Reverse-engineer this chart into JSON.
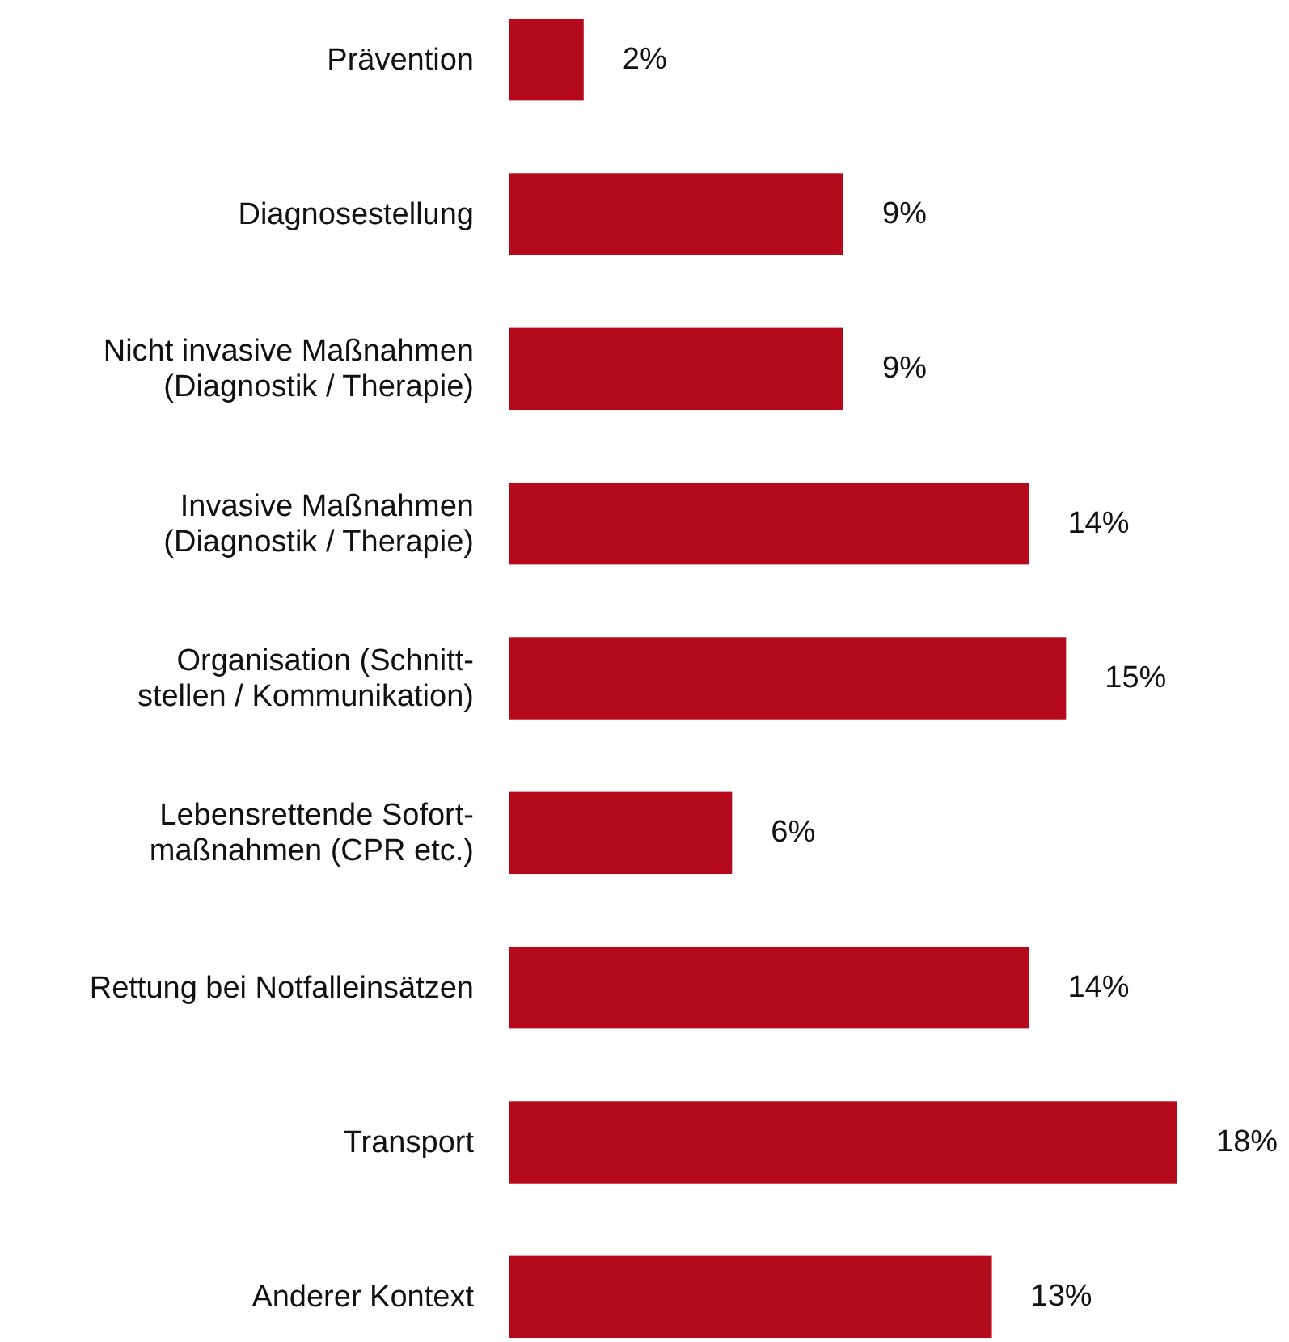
{
  "chart_data": {
    "type": "bar",
    "orientation": "horizontal",
    "categories": [
      "Prävention",
      "Diagnosestellung",
      "Nicht invasive Maßnahmen\n(Diagnostik / Therapie)",
      "Invasive Maßnahmen\n(Diagnostik / Therapie)",
      "Organisation (Schnitt-\nstellen / Kommunikation)",
      "Lebensrettende Sofort-\nmaßnahmen (CPR etc.)",
      "Rettung bei Notfalleinsätzen",
      "Transport",
      "Anderer Kontext"
    ],
    "values": [
      2,
      9,
      9,
      14,
      15,
      6,
      14,
      18,
      13
    ],
    "value_labels": [
      "2%",
      "9%",
      "9%",
      "14%",
      "15%",
      "6%",
      "14%",
      "18%",
      "13%"
    ],
    "color": "#b5091c",
    "grid": false
  }
}
